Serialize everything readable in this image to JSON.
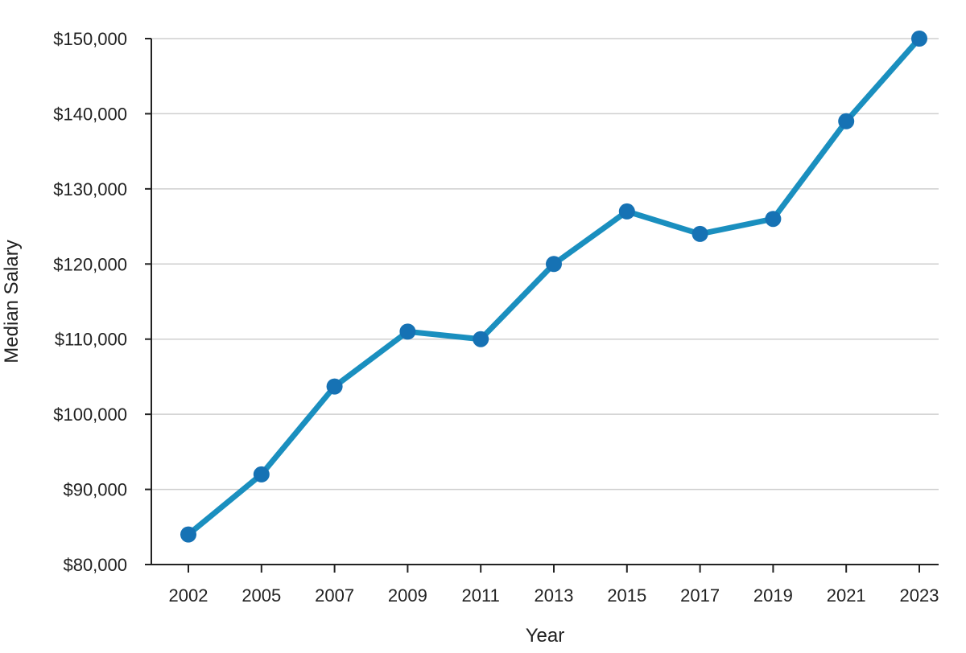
{
  "chart_data": {
    "type": "line",
    "title": "",
    "xlabel": "Year",
    "ylabel": "Median Salary",
    "categories": [
      "2002",
      "2005",
      "2007",
      "2009",
      "2011",
      "2013",
      "2015",
      "2017",
      "2019",
      "2021",
      "2023"
    ],
    "series": [
      {
        "name": "",
        "values": [
          84000,
          92000,
          103700,
          111000,
          110000,
          120000,
          127000,
          124000,
          126000,
          139000,
          150000
        ]
      }
    ],
    "ylim": [
      80000,
      150000
    ],
    "yticks": [
      80000,
      90000,
      100000,
      110000,
      120000,
      130000,
      140000,
      150000
    ],
    "ytick_labels": [
      "$80,000",
      "$90,000",
      "$100,000",
      "$110,000",
      "$120,000",
      "$130,000",
      "$140,000",
      "$150,000"
    ],
    "grid": "horizontal",
    "legend": "none",
    "colors": {
      "line": "#1a8fbf",
      "marker": "#1672b4",
      "grid": "#cfcfcf",
      "axis": "#222222"
    }
  }
}
